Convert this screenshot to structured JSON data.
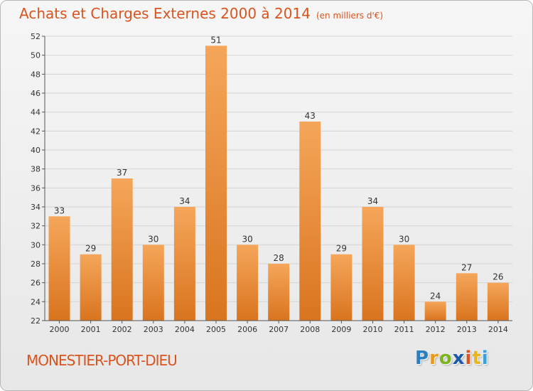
{
  "header": {
    "title": "Achats et Charges Externes 2000 à 2014",
    "subtitle": "(en milliers d'€)"
  },
  "footer": {
    "place": "MONESTIER-PORT-DIEU",
    "logo_letters": [
      "P",
      "r",
      "o",
      "x",
      "i",
      "t",
      "i"
    ],
    "logo_colors": [
      "#2a7fc1",
      "#e89a1a",
      "#7ab51d",
      "#1a5aa8",
      "#d9541e",
      "#e8b51a",
      "#3aa0d8"
    ]
  },
  "colors": {
    "title": "#d9541e",
    "bar_top": "#f5a65a",
    "bar_bottom": "#d9741f",
    "grid": "#d4d4d4"
  },
  "chart_data": {
    "type": "bar",
    "categories": [
      "2000",
      "2001",
      "2002",
      "2003",
      "2004",
      "2005",
      "2006",
      "2007",
      "2008",
      "2009",
      "2010",
      "2011",
      "2012",
      "2013",
      "2014"
    ],
    "values": [
      33,
      29,
      37,
      30,
      34,
      51,
      30,
      28,
      43,
      29,
      34,
      30,
      24,
      27,
      26
    ],
    "data_labels": [
      "33",
      "29",
      "37",
      "30",
      "34",
      "51",
      "30",
      "28",
      "43",
      "29",
      "34",
      "30",
      "24",
      "27",
      "26"
    ],
    "ylim": [
      22,
      52
    ],
    "yticks": [
      "22",
      "24",
      "26",
      "28",
      "30",
      "32",
      "34",
      "36",
      "38",
      "40",
      "42",
      "44",
      "46",
      "48",
      "50",
      "52"
    ],
    "title": "Achats et Charges Externes 2000 à 2014",
    "xlabel": "",
    "ylabel": "",
    "grid": true,
    "legend": false
  }
}
